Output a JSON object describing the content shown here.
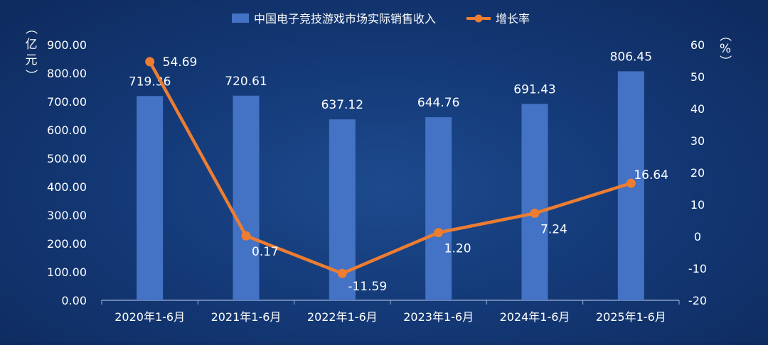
{
  "chart_data": {
    "type": "bar",
    "categories": [
      "2020年1-6月",
      "2021年1-6月",
      "2022年1-6月",
      "2023年1-6月",
      "2024年1-6月",
      "2025年1-6月"
    ],
    "series": [
      {
        "name": "中国电子竞技游戏市场实际销售收入",
        "type": "bar",
        "axis": "left",
        "values": [
          719.36,
          720.61,
          637.12,
          644.76,
          691.43,
          806.45
        ],
        "labels": [
          "719.36",
          "720.61",
          "637.12",
          "644.76",
          "691.43",
          "806.45"
        ]
      },
      {
        "name": "增长率",
        "type": "line",
        "axis": "right",
        "values": [
          54.69,
          0.17,
          -11.59,
          1.2,
          7.24,
          16.64
        ],
        "labels": [
          "54.69",
          "0.17",
          "-11.59",
          "1.20",
          "7.24",
          "16.64"
        ]
      }
    ],
    "y_left": {
      "label": "（亿元）",
      "ylim": [
        0,
        900
      ],
      "ticks": [
        "0.00",
        "100.00",
        "200.00",
        "300.00",
        "400.00",
        "500.00",
        "600.00",
        "700.00",
        "800.00",
        "900.00"
      ]
    },
    "y_right": {
      "label": "（%）",
      "ylim": [
        -20,
        60
      ],
      "ticks": [
        "-20",
        "-10",
        "0",
        "10",
        "20",
        "30",
        "40",
        "50",
        "60"
      ]
    },
    "legend": "top-center",
    "grid": false,
    "colors": {
      "bar": "#4472c4",
      "line": "#ed7d31",
      "axis": "#9fb3d6",
      "text": "#ffffff"
    }
  }
}
